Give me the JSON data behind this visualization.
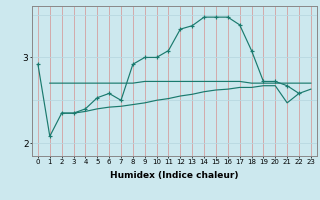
{
  "xlabel": "Humidex (Indice chaleur)",
  "bg_color": "#cce8ee",
  "line_color": "#1a7a6e",
  "vgrid_color": "#d4a0a0",
  "hgrid_color": "#b8d8e0",
  "x_ticks": [
    0,
    1,
    2,
    3,
    4,
    5,
    6,
    7,
    8,
    9,
    10,
    11,
    12,
    13,
    14,
    15,
    16,
    17,
    18,
    19,
    20,
    21,
    22,
    23
  ],
  "xlim": [
    -0.5,
    23.5
  ],
  "ylim": [
    1.85,
    3.6
  ],
  "yticks": [
    2.0,
    3.0
  ],
  "line1_x": [
    0,
    1,
    2,
    3,
    4,
    5,
    6,
    7,
    8,
    9,
    10,
    11,
    12,
    13,
    14,
    15,
    16,
    17,
    18,
    19,
    20,
    21,
    22
  ],
  "line1_y": [
    2.92,
    2.08,
    2.35,
    2.35,
    2.4,
    2.53,
    2.58,
    2.5,
    2.92,
    3.0,
    3.0,
    3.08,
    3.33,
    3.37,
    3.47,
    3.47,
    3.47,
    3.38,
    3.08,
    2.72,
    2.72,
    2.67,
    2.58
  ],
  "line2_x": [
    1,
    2,
    3,
    4,
    5,
    6,
    7,
    8,
    9,
    10,
    11,
    12,
    13,
    14,
    15,
    16,
    17,
    18,
    19,
    20,
    21,
    22,
    23
  ],
  "line2_y": [
    2.7,
    2.7,
    2.7,
    2.7,
    2.7,
    2.7,
    2.7,
    2.7,
    2.72,
    2.72,
    2.72,
    2.72,
    2.72,
    2.72,
    2.72,
    2.72,
    2.72,
    2.7,
    2.7,
    2.7,
    2.7,
    2.7,
    2.7
  ],
  "line3_x": [
    2,
    3,
    4,
    5,
    6,
    7,
    8,
    9,
    10,
    11,
    12,
    13,
    14,
    15,
    16,
    17,
    18,
    19,
    20,
    21,
    22,
    23
  ],
  "line3_y": [
    2.35,
    2.35,
    2.37,
    2.4,
    2.42,
    2.43,
    2.45,
    2.47,
    2.5,
    2.52,
    2.55,
    2.57,
    2.6,
    2.62,
    2.63,
    2.65,
    2.65,
    2.67,
    2.67,
    2.47,
    2.58,
    2.63
  ]
}
